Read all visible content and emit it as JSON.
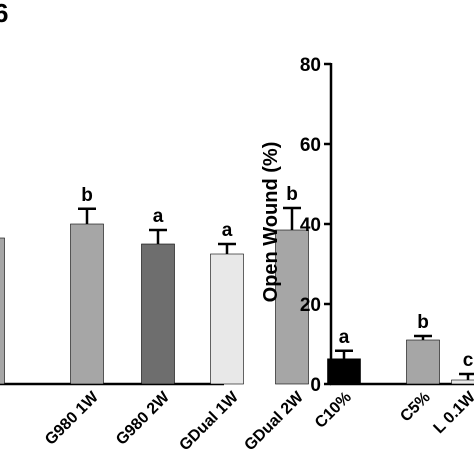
{
  "panel_label": "6",
  "chart_data": [
    {
      "type": "bar",
      "categories": [
        "",
        "G980 1W",
        "G980 2W",
        "GDual 1W",
        "GDual 2W"
      ],
      "tick_labels": [
        "",
        "G980 1W",
        "G980 2W",
        "GDual 1W",
        "GDual 2W"
      ],
      "values": [
        36.5,
        40.0,
        35.0,
        32.5,
        38.5
      ],
      "errors": [
        0,
        3.8,
        3.5,
        2.5,
        5.5
      ],
      "sig_letters": [
        "",
        "b",
        "a",
        "a",
        "b"
      ],
      "colors": [
        "#a6a6a6",
        "#a6a6a6",
        "#6e6e6e",
        "#e8e8e8",
        "#a6a6a6"
      ],
      "ylim": [
        0,
        80
      ],
      "grid": false
    },
    {
      "type": "bar",
      "categories": [
        "C10%",
        "C5%",
        "L 0.1W"
      ],
      "tick_labels": [
        "C10%",
        "C5%",
        "L 0.1W"
      ],
      "values": [
        6.3,
        11.0,
        1.0
      ],
      "errors": [
        2.0,
        1.0,
        1.5
      ],
      "sig_letters": [
        "a",
        "b",
        "c"
      ],
      "colors": [
        "#000000",
        "#a6a6a6",
        "#e8e8e8"
      ],
      "ylabel": "Open Wound (%)",
      "yticks": [
        0,
        20,
        40,
        60,
        80
      ],
      "ylim": [
        0,
        80
      ],
      "grid": false
    }
  ]
}
